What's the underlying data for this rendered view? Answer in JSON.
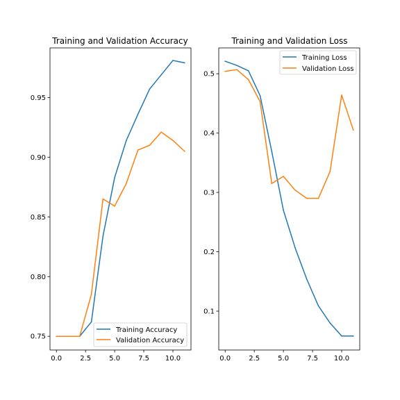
{
  "chart_data": [
    {
      "type": "line",
      "title": "Training and Validation Accuracy",
      "xlabel": "",
      "ylabel": "",
      "x": [
        0,
        1,
        2,
        3,
        4,
        5,
        6,
        7,
        8,
        9,
        10,
        11
      ],
      "xlim": [
        -0.55,
        11.55
      ],
      "ylim": [
        0.7385,
        0.9915
      ],
      "xticks": [
        0.0,
        2.5,
        5.0,
        7.5,
        10.0
      ],
      "xtick_labels": [
        "0.0",
        "2.5",
        "5.0",
        "7.5",
        "10.0"
      ],
      "yticks": [
        0.75,
        0.8,
        0.85,
        0.9,
        0.95
      ],
      "ytick_labels": [
        "0.75",
        "0.80",
        "0.85",
        "0.90",
        "0.95"
      ],
      "grid": false,
      "legend_position": "lower right",
      "series": [
        {
          "name": "Training Accuracy",
          "color": "#1f77b4",
          "values": [
            0.75,
            0.75,
            0.75,
            0.762,
            0.834,
            0.883,
            0.914,
            0.936,
            0.957,
            0.969,
            0.981,
            0.979
          ]
        },
        {
          "name": "Validation Accuracy",
          "color": "#ff7f0e",
          "values": [
            0.75,
            0.75,
            0.75,
            0.785,
            0.865,
            0.859,
            0.878,
            0.906,
            0.91,
            0.921,
            0.914,
            0.905
          ]
        }
      ]
    },
    {
      "type": "line",
      "title": "Training and Validation Loss",
      "xlabel": "",
      "ylabel": "",
      "x": [
        0,
        1,
        2,
        3,
        4,
        5,
        6,
        7,
        8,
        9,
        10,
        11
      ],
      "xlim": [
        -0.55,
        11.55
      ],
      "ylim": [
        0.0345,
        0.5435
      ],
      "xticks": [
        0.0,
        2.5,
        5.0,
        7.5,
        10.0
      ],
      "xtick_labels": [
        "0.0",
        "2.5",
        "5.0",
        "7.5",
        "10.0"
      ],
      "yticks": [
        0.1,
        0.2,
        0.3,
        0.4,
        0.5
      ],
      "ytick_labels": [
        "0.1",
        "0.2",
        "0.3",
        "0.4",
        "0.5"
      ],
      "grid": false,
      "legend_position": "upper right",
      "series": [
        {
          "name": "Training Loss",
          "color": "#1f77b4",
          "values": [
            0.521,
            0.514,
            0.505,
            0.463,
            0.369,
            0.27,
            0.207,
            0.154,
            0.109,
            0.08,
            0.058,
            0.058
          ]
        },
        {
          "name": "Validation Loss",
          "color": "#ff7f0e",
          "values": [
            0.504,
            0.507,
            0.49,
            0.453,
            0.315,
            0.327,
            0.304,
            0.29,
            0.29,
            0.335,
            0.464,
            0.405
          ]
        }
      ]
    }
  ]
}
